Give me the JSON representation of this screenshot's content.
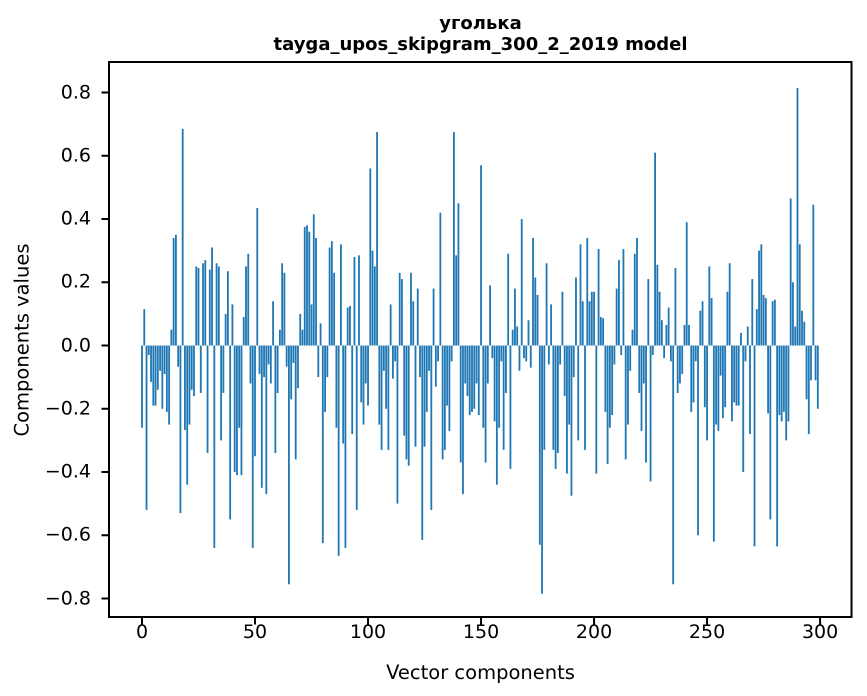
{
  "chart_data": {
    "type": "bar",
    "title_line1": "уголька",
    "title_line2": "tayga_upos_skipgram_300_2_2019 model",
    "xlabel": "Vector components",
    "ylabel": "Components values",
    "x_ticks": [
      0,
      50,
      100,
      150,
      200,
      250,
      300
    ],
    "y_ticks": [
      -0.8,
      -0.6,
      -0.4,
      -0.2,
      0.0,
      0.2,
      0.4,
      0.6,
      0.8
    ],
    "xlim": [
      -14.6,
      313.9
    ],
    "ylim": [
      -0.8585,
      0.8965
    ],
    "bar_color": "#1f77b4",
    "n_components": 300,
    "values": [
      -0.26,
      0.115,
      -0.52,
      -0.03,
      -0.115,
      -0.19,
      -0.19,
      -0.14,
      -0.08,
      -0.2,
      -0.09,
      -0.21,
      -0.25,
      0.05,
      0.34,
      0.35,
      -0.067,
      -0.53,
      0.685,
      -0.267,
      -0.44,
      -0.25,
      -0.14,
      -0.16,
      0.25,
      0.245,
      -0.15,
      0.26,
      0.27,
      -0.34,
      0.24,
      0.31,
      -0.64,
      0.26,
      0.25,
      -0.3,
      -0.15,
      0.1,
      0.235,
      -0.55,
      0.13,
      -0.4,
      -0.41,
      -0.26,
      -0.41,
      0.09,
      0.25,
      0.29,
      -0.12,
      -0.64,
      -0.35,
      0.435,
      -0.09,
      -0.45,
      -0.1,
      -0.47,
      -0.06,
      -0.12,
      0.14,
      -0.34,
      -0.15,
      0.05,
      0.26,
      0.23,
      -0.067,
      -0.755,
      -0.17,
      -0.055,
      -0.36,
      -0.135,
      0.1,
      0.05,
      0.375,
      0.38,
      0.36,
      0.13,
      0.415,
      0.34,
      -0.1,
      0.07,
      -0.625,
      -0.21,
      -0.1,
      0.31,
      0.33,
      0.23,
      -0.26,
      -0.665,
      0.32,
      -0.31,
      -0.64,
      0.12,
      0.125,
      -0.28,
      0.28,
      -0.52,
      0.285,
      -0.18,
      -0.25,
      -0.12,
      -0.19,
      0.56,
      0.3,
      0.25,
      0.675,
      -0.25,
      -0.33,
      -0.08,
      -0.2,
      -0.33,
      0.13,
      -0.105,
      -0.05,
      -0.5,
      0.23,
      0.21,
      -0.285,
      -0.36,
      -0.38,
      0.23,
      0.14,
      -0.32,
      0.18,
      -0.1,
      -0.615,
      -0.32,
      -0.21,
      -0.08,
      -0.52,
      0.18,
      -0.13,
      -0.05,
      0.42,
      -0.36,
      -0.33,
      -0.19,
      -0.27,
      -0.05,
      0.675,
      0.285,
      0.45,
      -0.37,
      -0.47,
      -0.12,
      -0.16,
      -0.22,
      -0.21,
      -0.2,
      -0.12,
      -0.22,
      0.57,
      -0.26,
      -0.37,
      -0.12,
      0.19,
      -0.04,
      -0.24,
      -0.44,
      -0.26,
      -0.05,
      -0.33,
      -0.15,
      0.29,
      -0.39,
      0.05,
      0.18,
      0.06,
      -0.08,
      0.4,
      -0.04,
      -0.05,
      0.08,
      -0.07,
      0.34,
      0.215,
      0.16,
      -0.63,
      -0.785,
      -0.33,
      0.26,
      -0.06,
      0.13,
      -0.33,
      -0.39,
      -0.34,
      -0.06,
      0.17,
      -0.16,
      -0.405,
      -0.25,
      -0.475,
      -0.1,
      0.215,
      -0.3,
      0.32,
      0.14,
      -0.33,
      0.34,
      0.14,
      0.17,
      0.17,
      -0.405,
      0.305,
      0.09,
      0.086,
      -0.21,
      -0.375,
      -0.26,
      -0.22,
      -0.06,
      0.18,
      0.27,
      -0.03,
      0.305,
      -0.36,
      -0.25,
      -0.08,
      0.05,
      0.29,
      0.34,
      -0.15,
      -0.27,
      -0.12,
      -0.37,
      0.21,
      -0.43,
      -0.03,
      0.61,
      0.255,
      0.17,
      0.08,
      -0.04,
      0.065,
      0.12,
      -0.05,
      -0.755,
      0.245,
      -0.15,
      -0.12,
      -0.09,
      0.065,
      0.39,
      0.065,
      -0.21,
      -0.18,
      -0.05,
      -0.6,
      0.11,
      0.14,
      -0.195,
      -0.3,
      0.25,
      0.15,
      -0.62,
      -0.25,
      -0.27,
      -0.095,
      -0.23,
      -0.195,
      0.17,
      0.26,
      -0.24,
      -0.18,
      -0.19,
      -0.19,
      0.04,
      -0.4,
      -0.05,
      0.06,
      -0.28,
      0.21,
      -0.635,
      0.115,
      0.3,
      0.32,
      0.16,
      0.15,
      -0.215,
      -0.55,
      0.14,
      0.145,
      -0.635,
      -0.22,
      -0.24,
      -0.21,
      -0.3,
      -0.24,
      0.465,
      0.2,
      0.06,
      0.814,
      0.32,
      0.11,
      0.075,
      -0.17,
      -0.28,
      -0.11,
      0.445,
      -0.11,
      -0.2
    ]
  }
}
